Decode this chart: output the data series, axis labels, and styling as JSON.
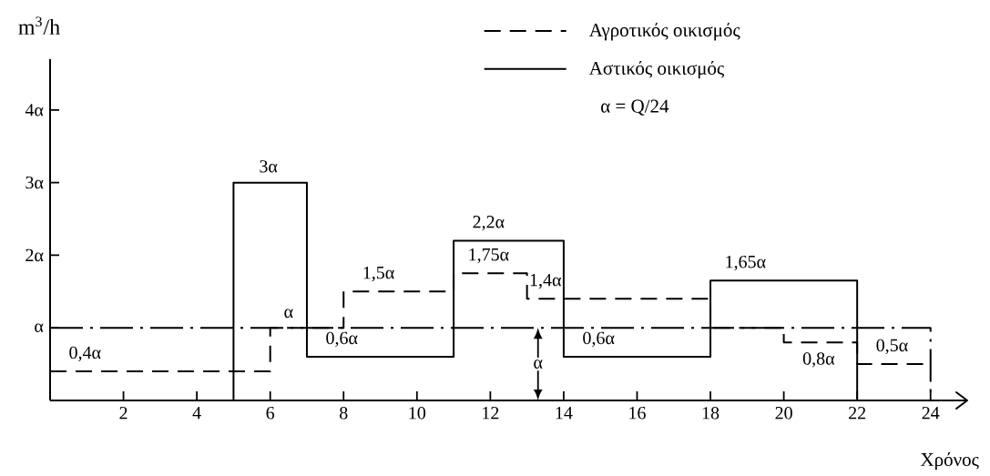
{
  "chart_data": {
    "type": "step",
    "xlabel": "Χρόνος",
    "ylabel": "m$^{3}$/h",
    "xlim": [
      0,
      25
    ],
    "ylim": [
      0,
      4.7
    ],
    "xticks": [
      2,
      4,
      6,
      8,
      10,
      12,
      14,
      16,
      18,
      20,
      22,
      24
    ],
    "yticks": [
      {
        "value": 1,
        "label": "α"
      },
      {
        "value": 2,
        "label": "2α"
      },
      {
        "value": 3,
        "label": "3α"
      },
      {
        "value": 4,
        "label": "4α"
      }
    ],
    "legend": "top",
    "series": [
      {
        "name": "Αγροτικός οικισμός",
        "color": "#000000",
        "line_style": "dashed",
        "x": [
          0,
          6,
          8,
          11,
          13,
          18,
          20,
          22,
          24
        ],
        "values": [
          0.4,
          1,
          1.5,
          1.75,
          1.4,
          1,
          0.8,
          0.5,
          0.5
        ],
        "value_labels": [
          "0,4α",
          "α",
          "1,5α",
          "1,75α",
          "1,4α",
          null,
          "0,8α",
          "0,5α",
          null
        ]
      },
      {
        "name": "Αστικός οικισμός",
        "color": "#000000",
        "line_style": "solid",
        "x": [
          0,
          5,
          7,
          11,
          14,
          18,
          22,
          24
        ],
        "values": [
          0,
          3,
          0.6,
          2.2,
          0.6,
          1.65,
          0,
          0
        ],
        "value_labels": [
          null,
          "3α",
          "0,6α",
          "2,2α",
          "0,6α",
          "1,65α",
          null,
          null
        ]
      },
      {
        "color": "#000000",
        "line_style": "dashdot",
        "x": [
          0,
          24
        ],
        "values": [
          1,
          0
        ]
      }
    ],
    "annotations": [
      "α = Q/24",
      {
        "text": "α",
        "x": 13.3,
        "y": 1
      }
    ]
  }
}
